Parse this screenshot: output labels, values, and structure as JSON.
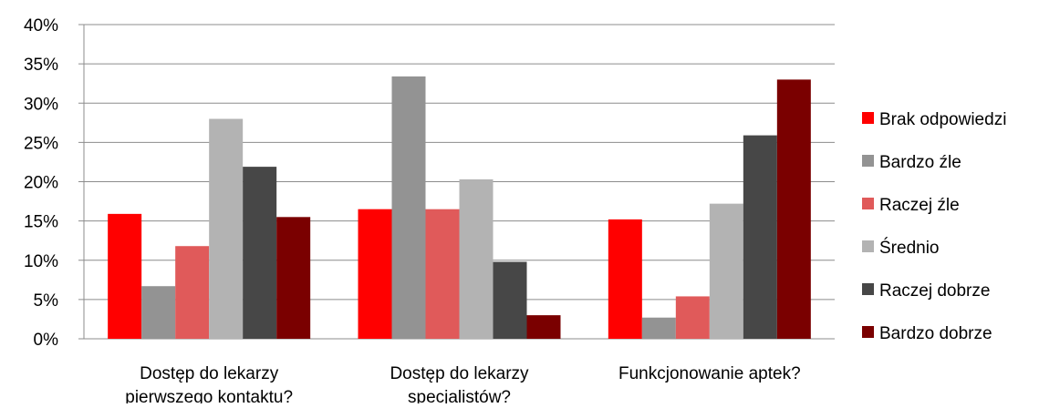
{
  "chart_data": {
    "type": "bar",
    "categories": [
      "Dostęp do lekarzy pierwszego kontaktu?",
      "Dostęp do lekarzy specjalistów?",
      "Funkcjonowanie aptek?"
    ],
    "series": [
      {
        "name": "Brak odpowiedzi",
        "color": "#ff0000",
        "values": [
          15.9,
          16.5,
          15.2
        ]
      },
      {
        "name": "Bardzo źle",
        "color": "#939393",
        "values": [
          6.7,
          33.4,
          2.7
        ]
      },
      {
        "name": "Raczej źle",
        "color": "#e05a5a",
        "values": [
          11.8,
          16.5,
          5.4
        ]
      },
      {
        "name": "Średnio",
        "color": "#b3b3b3",
        "values": [
          28.0,
          20.3,
          17.2
        ]
      },
      {
        "name": "Raczej dobrze",
        "color": "#474747",
        "values": [
          21.9,
          9.8,
          25.9
        ]
      },
      {
        "name": "Bardzo dobrze",
        "color": "#7a0000",
        "values": [
          15.5,
          3.0,
          33.0
        ]
      }
    ],
    "ylim": [
      0,
      40
    ],
    "yticks": [
      {
        "value": 0,
        "label": "0%"
      },
      {
        "value": 5,
        "label": "5%"
      },
      {
        "value": 10,
        "label": "10%"
      },
      {
        "value": 15,
        "label": "15%"
      },
      {
        "value": 20,
        "label": "20%"
      },
      {
        "value": 25,
        "label": "25%"
      },
      {
        "value": 30,
        "label": "30%"
      },
      {
        "value": 35,
        "label": "35%"
      },
      {
        "value": 40,
        "label": "40%"
      }
    ],
    "grid": true,
    "legend": "right"
  }
}
